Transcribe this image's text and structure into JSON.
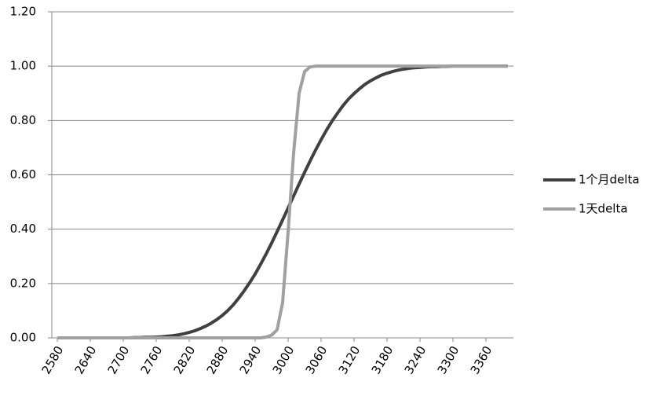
{
  "chart_data": {
    "type": "line",
    "x": [
      2580,
      2590,
      2600,
      2610,
      2620,
      2630,
      2640,
      2650,
      2660,
      2670,
      2680,
      2690,
      2700,
      2710,
      2720,
      2730,
      2740,
      2750,
      2760,
      2770,
      2780,
      2790,
      2800,
      2810,
      2820,
      2830,
      2840,
      2850,
      2860,
      2870,
      2880,
      2890,
      2900,
      2910,
      2920,
      2930,
      2940,
      2950,
      2960,
      2970,
      2980,
      2990,
      3000,
      3010,
      3020,
      3030,
      3040,
      3050,
      3060,
      3070,
      3080,
      3090,
      3100,
      3110,
      3120,
      3130,
      3140,
      3150,
      3160,
      3170,
      3180,
      3190,
      3200,
      3210,
      3220,
      3230,
      3240,
      3250,
      3260,
      3270,
      3280,
      3290,
      3300,
      3310,
      3320,
      3330,
      3340,
      3350,
      3360,
      3370,
      3380,
      3390,
      3400
    ],
    "series": [
      {
        "name": "1个月delta",
        "color": "#404040",
        "values": [
          0,
          0,
          0,
          0,
          0,
          0,
          0,
          0,
          0,
          0,
          0,
          0,
          0,
          0,
          0.001,
          0.001,
          0.002,
          0.002,
          0.003,
          0.004,
          0.006,
          0.008,
          0.011,
          0.015,
          0.02,
          0.026,
          0.034,
          0.043,
          0.054,
          0.067,
          0.082,
          0.1,
          0.121,
          0.146,
          0.173,
          0.203,
          0.235,
          0.271,
          0.309,
          0.349,
          0.391,
          0.434,
          0.478,
          0.522,
          0.566,
          0.609,
          0.651,
          0.691,
          0.729,
          0.765,
          0.798,
          0.827,
          0.855,
          0.879,
          0.899,
          0.917,
          0.933,
          0.946,
          0.957,
          0.967,
          0.974,
          0.98,
          0.985,
          0.989,
          0.992,
          0.994,
          0.995,
          0.997,
          0.998,
          0.998,
          0.999,
          0.999,
          1,
          1,
          1,
          1,
          1,
          1,
          1,
          1,
          1,
          1,
          1
        ]
      },
      {
        "name": "1天delta",
        "color": "#a0a0a0",
        "values": [
          0,
          0,
          0,
          0,
          0,
          0,
          0,
          0,
          0,
          0,
          0,
          0,
          0,
          0,
          0,
          0,
          0,
          0,
          0,
          0,
          0,
          0,
          0,
          0,
          0,
          0,
          0,
          0,
          0,
          0,
          0,
          0,
          0,
          0,
          0,
          0,
          0,
          0,
          0.003,
          0.01,
          0.03,
          0.13,
          0.39,
          0.68,
          0.9,
          0.98,
          0.997,
          1,
          1,
          1,
          1,
          1,
          1,
          1,
          1,
          1,
          1,
          1,
          1,
          1,
          1,
          1,
          1,
          1,
          1,
          1,
          1,
          1,
          1,
          1,
          1,
          1,
          1,
          1,
          1,
          1,
          1,
          1,
          1,
          1,
          1,
          1,
          1
        ]
      }
    ],
    "xlim": [
      2570,
      3410
    ],
    "xticks": [
      2580,
      2640,
      2700,
      2760,
      2820,
      2880,
      2940,
      3000,
      3060,
      3120,
      3180,
      3240,
      3300,
      3360
    ],
    "ylim": [
      0,
      1.2
    ],
    "yticks": [
      {
        "value": 0,
        "label": "0.00"
      },
      {
        "value": 0.2,
        "label": "0.20"
      },
      {
        "value": 0.4,
        "label": "0.40"
      },
      {
        "value": 0.6,
        "label": "0.60"
      },
      {
        "value": 0.8,
        "label": "0.80"
      },
      {
        "value": 1,
        "label": "1.00"
      },
      {
        "value": 1.2,
        "label": "1.20"
      }
    ],
    "grid": true,
    "legend": "right"
  }
}
